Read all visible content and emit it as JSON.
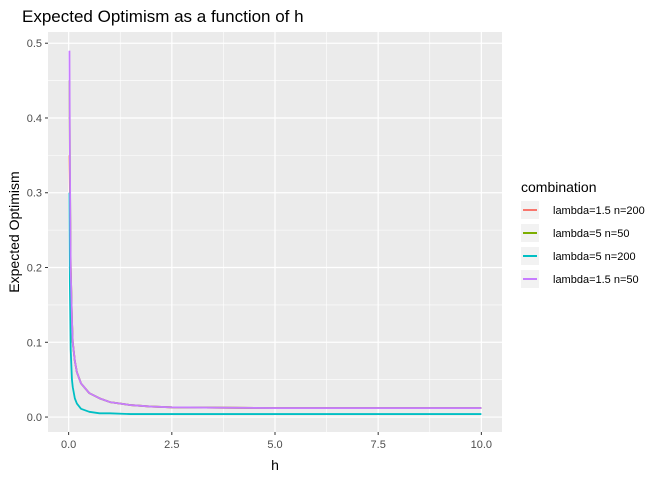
{
  "chart_data": {
    "type": "line",
    "title": "Expected Optimism as a function of h",
    "xlabel": "h",
    "ylabel": "Expected Optimism",
    "xlim": [
      -0.5,
      10.5
    ],
    "ylim": [
      -0.02,
      0.515
    ],
    "x_ticks": [
      0.0,
      2.5,
      5.0,
      7.5,
      10.0
    ],
    "x_tick_labels": [
      "0.0",
      "2.5",
      "5.0",
      "7.5",
      "10.0"
    ],
    "y_ticks": [
      0.0,
      0.1,
      0.2,
      0.3,
      0.4,
      0.5
    ],
    "y_tick_labels": [
      "0.0",
      "0.1",
      "0.2",
      "0.3",
      "0.4",
      "0.5"
    ],
    "grid": true,
    "legend_placement": "right",
    "legend_title": "combination",
    "series": [
      {
        "name": "lambda=1.5 n=200",
        "color": "#F8766D",
        "x": [
          0.02,
          0.03,
          0.05,
          0.08,
          0.1,
          0.15,
          0.2,
          0.3,
          0.5,
          0.75,
          1.0,
          1.5,
          2.0,
          2.5,
          5.0,
          7.5,
          10.0
        ],
        "y": [
          0.35,
          0.3,
          0.2,
          0.13,
          0.1,
          0.075,
          0.06,
          0.045,
          0.032,
          0.025,
          0.02,
          0.016,
          0.014,
          0.013,
          0.012,
          0.012,
          0.012
        ]
      },
      {
        "name": "lambda=5 n=50",
        "color": "#7CAE00",
        "x": [
          0.02,
          0.03,
          0.05,
          0.08,
          0.1,
          0.15,
          0.2,
          0.3,
          0.5,
          0.75,
          1.0,
          1.5,
          2.0,
          2.5,
          5.0,
          7.5,
          10.0
        ],
        "y": [
          0.45,
          0.33,
          0.2,
          0.13,
          0.1,
          0.075,
          0.06,
          0.045,
          0.032,
          0.025,
          0.02,
          0.016,
          0.014,
          0.013,
          0.012,
          0.012,
          0.012
        ]
      },
      {
        "name": "lambda=5 n=200",
        "color": "#00BFC4",
        "x": [
          0.02,
          0.03,
          0.05,
          0.08,
          0.1,
          0.15,
          0.2,
          0.3,
          0.5,
          0.75,
          1.0,
          1.5,
          2.0,
          2.5,
          5.0,
          7.5,
          10.0
        ],
        "y": [
          0.3,
          0.18,
          0.09,
          0.05,
          0.04,
          0.025,
          0.018,
          0.011,
          0.007,
          0.005,
          0.005,
          0.004,
          0.004,
          0.004,
          0.004,
          0.004,
          0.004
        ]
      },
      {
        "name": "lambda=1.5 n=50",
        "color": "#C77CFF",
        "x": [
          0.02,
          0.03,
          0.05,
          0.08,
          0.1,
          0.15,
          0.2,
          0.3,
          0.5,
          0.75,
          1.0,
          1.5,
          2.0,
          2.5,
          5.0,
          7.5,
          10.0
        ],
        "y": [
          0.49,
          0.35,
          0.2,
          0.13,
          0.1,
          0.075,
          0.06,
          0.045,
          0.032,
          0.025,
          0.02,
          0.016,
          0.014,
          0.013,
          0.012,
          0.012,
          0.012
        ]
      }
    ]
  }
}
